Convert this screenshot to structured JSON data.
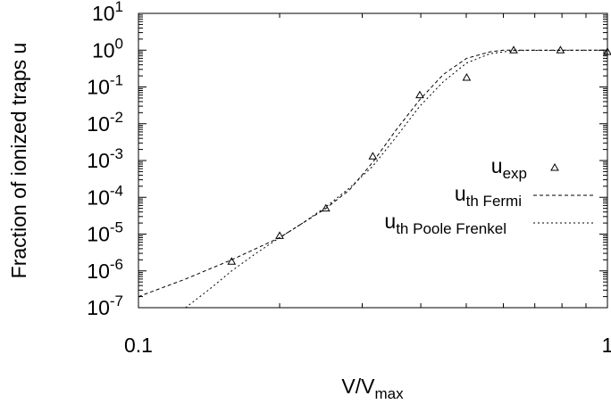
{
  "chart_data": {
    "type": "scatter",
    "xlabel_main": "V/V",
    "xlabel_sub": "max",
    "ylabel": "Fraction of ionized traps u",
    "xscale": "log",
    "yscale": "log",
    "xlim": [
      0.1,
      1
    ],
    "ylim": [
      1e-07,
      10
    ],
    "grid": false,
    "legend_position": "right",
    "x_ticks": [
      {
        "value": 0.1,
        "label": "0.1"
      },
      {
        "value": 1,
        "label": "1"
      }
    ],
    "y_ticks": [
      {
        "exp": 1,
        "base": "10",
        "sup": "1"
      },
      {
        "exp": 0,
        "base": "10",
        "sup": "0"
      },
      {
        "exp": -1,
        "base": "10",
        "sup": "-1"
      },
      {
        "exp": -2,
        "base": "10",
        "sup": "-2"
      },
      {
        "exp": -3,
        "base": "10",
        "sup": "-3"
      },
      {
        "exp": -4,
        "base": "10",
        "sup": "-4"
      },
      {
        "exp": -5,
        "base": "10",
        "sup": "-5"
      },
      {
        "exp": -6,
        "base": "10",
        "sup": "-6"
      },
      {
        "exp": -7,
        "base": "10",
        "sup": "-7"
      }
    ],
    "series": [
      {
        "name_main": "u",
        "name_sub": "exp",
        "style": "triangle-markers",
        "points": [
          {
            "x": 0.158,
            "y": 1.8e-06
          },
          {
            "x": 0.2,
            "y": 9e-06
          },
          {
            "x": 0.251,
            "y": 5e-05
          },
          {
            "x": 0.316,
            "y": 0.0013
          },
          {
            "x": 0.398,
            "y": 0.06
          },
          {
            "x": 0.501,
            "y": 0.18
          },
          {
            "x": 0.631,
            "y": 1.0
          },
          {
            "x": 0.794,
            "y": 1.0
          },
          {
            "x": 1.0,
            "y": 0.9
          }
        ]
      },
      {
        "name_main": "u",
        "name_sub": "th Fermi",
        "style": "dashed",
        "points": [
          {
            "x": 0.1,
            "y": 2e-07
          },
          {
            "x": 0.126,
            "y": 6e-07
          },
          {
            "x": 0.158,
            "y": 2e-06
          },
          {
            "x": 0.2,
            "y": 8e-06
          },
          {
            "x": 0.251,
            "y": 5e-05
          },
          {
            "x": 0.282,
            "y": 0.00016
          },
          {
            "x": 0.316,
            "y": 0.0009
          },
          {
            "x": 0.355,
            "y": 0.007
          },
          {
            "x": 0.398,
            "y": 0.045
          },
          {
            "x": 0.447,
            "y": 0.22
          },
          {
            "x": 0.501,
            "y": 0.6
          },
          {
            "x": 0.562,
            "y": 0.9
          },
          {
            "x": 0.6,
            "y": 1.0
          },
          {
            "x": 1.0,
            "y": 1.0
          }
        ]
      },
      {
        "name_main": "u",
        "name_sub": "th Poole Frenkel",
        "style": "dotted",
        "points": [
          {
            "x": 0.126,
            "y": 1e-07
          },
          {
            "x": 0.141,
            "y": 3e-07
          },
          {
            "x": 0.158,
            "y": 1e-06
          },
          {
            "x": 0.178,
            "y": 3e-06
          },
          {
            "x": 0.2,
            "y": 8e-06
          },
          {
            "x": 0.224,
            "y": 2e-05
          },
          {
            "x": 0.251,
            "y": 5.5e-05
          },
          {
            "x": 0.282,
            "y": 0.00018
          },
          {
            "x": 0.316,
            "y": 0.0007
          },
          {
            "x": 0.355,
            "y": 0.0045
          },
          {
            "x": 0.398,
            "y": 0.03
          },
          {
            "x": 0.447,
            "y": 0.14
          },
          {
            "x": 0.501,
            "y": 0.45
          },
          {
            "x": 0.562,
            "y": 0.8
          },
          {
            "x": 0.631,
            "y": 0.98
          },
          {
            "x": 1.0,
            "y": 1.0
          }
        ]
      }
    ]
  }
}
